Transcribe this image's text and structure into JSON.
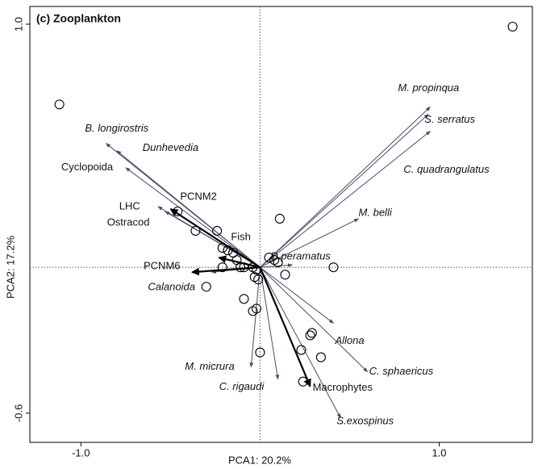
{
  "chart_data": {
    "type": "biplot",
    "title": "(c) Zooplankton",
    "xlabel": "PCA1: 20.2%",
    "ylabel": "PCA2: 17.2%",
    "xlim": [
      -1.285,
      1.52
    ],
    "ylim": [
      -0.72,
      1.073
    ],
    "xticks": [
      {
        "value": -1.0,
        "label": "-1.0"
      },
      {
        "value": 1.0,
        "label": "1.0"
      }
    ],
    "yticks": [
      {
        "value": 1.0,
        "label": "1.0"
      },
      {
        "value": -0.6,
        "label": "-0.6"
      }
    ],
    "points": {
      "x": [
        -1.12,
        1.41,
        -0.46,
        -0.36,
        -0.24,
        0.11,
        -0.21,
        -0.18,
        -0.15,
        -0.21,
        -0.13,
        -0.11,
        -0.09,
        -0.04,
        -0.02,
        -0.03,
        -0.01,
        0.05,
        0.08,
        0.1,
        0.14,
        0.41,
        -0.3,
        -0.09,
        -0.02,
        -0.04,
        0.29,
        0.28,
        0.23,
        0.34,
        0.0,
        0.24
      ],
      "y": [
        0.67,
        0.99,
        0.23,
        0.15,
        0.15,
        0.2,
        0.08,
        0.07,
        0.06,
        0.0,
        0.03,
        0.0,
        0.0,
        0.0,
        -0.01,
        -0.04,
        -0.05,
        0.04,
        0.03,
        0.02,
        -0.03,
        0.0,
        -0.08,
        -0.13,
        -0.17,
        -0.18,
        -0.27,
        -0.28,
        -0.34,
        -0.37,
        -0.35,
        -0.47
      ]
    },
    "species_vectors": {
      "color": "#4b4b6e",
      "labels": [
        "B. longirostris",
        "Dunhevedia",
        "Cyclopoida",
        "LHC",
        "Ostracod",
        "Calanoida",
        "M. propinqua",
        "S. serratus",
        "C. quadrangulatus",
        "M. belli",
        "D.peramatus",
        "Allona",
        "C. sphaericus",
        "S.exospinus",
        "C. rigaudi",
        "M. micrura"
      ],
      "x": [
        -0.86,
        -0.8,
        -0.75,
        -0.57,
        -0.53,
        -0.27,
        0.95,
        0.94,
        0.95,
        0.55,
        0.18,
        0.41,
        0.6,
        0.45,
        0.1,
        -0.05
      ],
      "y": [
        0.51,
        0.48,
        0.41,
        0.25,
        0.23,
        -0.02,
        0.66,
        0.63,
        0.56,
        0.2,
        0.01,
        -0.23,
        -0.43,
        -0.62,
        -0.46,
        -0.41
      ]
    },
    "environment_vectors": {
      "color": "#000000",
      "labels": [
        "PCNM2",
        "Fish",
        "PCNM6",
        "Macrophytes"
      ],
      "x": [
        -0.5,
        -0.23,
        -0.38,
        0.28
      ],
      "y": [
        0.24,
        0.04,
        -0.02,
        -0.49
      ]
    }
  }
}
